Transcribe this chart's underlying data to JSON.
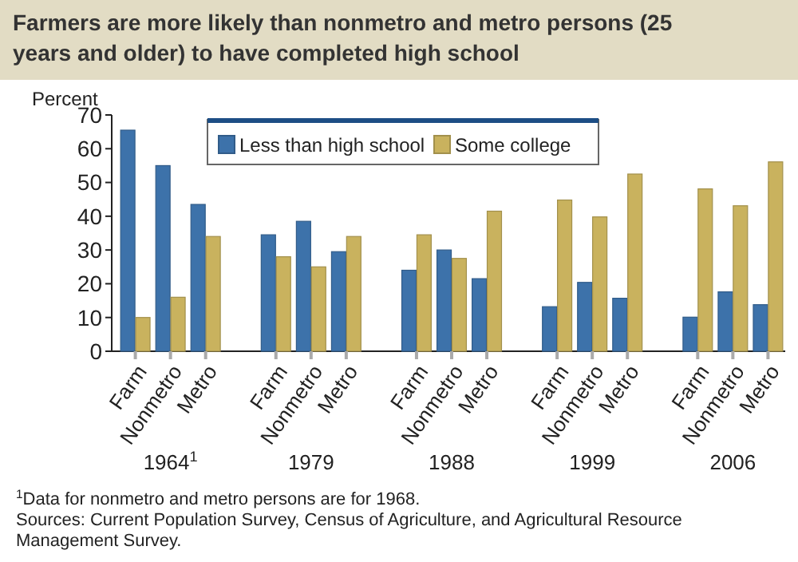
{
  "chart_data": {
    "type": "bar",
    "title": "Farmers are more likely than nonmetro and metro persons (25 years and older) to have completed high school",
    "ylabel": "Percent",
    "categories": [
      "Farm",
      "Nonmetro",
      "Metro",
      null,
      "Farm",
      "Nonmetro",
      "Metro",
      null,
      "Farm",
      "Nonmetro",
      "Metro",
      null,
      "Farm",
      "Nonmetro",
      "Metro",
      null,
      "Farm",
      "Nonmetro",
      "Metro"
    ],
    "series": [
      {
        "name": "Less than high school",
        "color": "#3d72aa",
        "values": [
          65.5,
          55,
          43.5,
          null,
          34.5,
          38.5,
          29.5,
          null,
          24,
          30,
          21.5,
          null,
          13.2,
          20.4,
          15.7,
          null,
          10.1,
          17.6,
          13.8
        ]
      },
      {
        "name": "Some college",
        "color": "#c9b25e",
        "values": [
          10,
          16,
          34,
          null,
          28,
          25,
          34,
          null,
          34.5,
          27.5,
          41.5,
          null,
          44.8,
          39.8,
          52.5,
          null,
          48.1,
          43.1,
          56.1
        ]
      }
    ],
    "ylim": [
      0,
      70
    ],
    "yticks": [
      0,
      10,
      20,
      30,
      40,
      50,
      60,
      70
    ],
    "grid": false,
    "legend": "top",
    "annotations": [
      "1964$^{1}$",
      "1979",
      "1988",
      "1999",
      "2006",
      "$^{1}$Data for nonmetro and metro persons are for 1968.",
      "Sources: Current Population Survey, Census of Agriculture, and Agricultural Resource Management Survey."
    ]
  }
}
